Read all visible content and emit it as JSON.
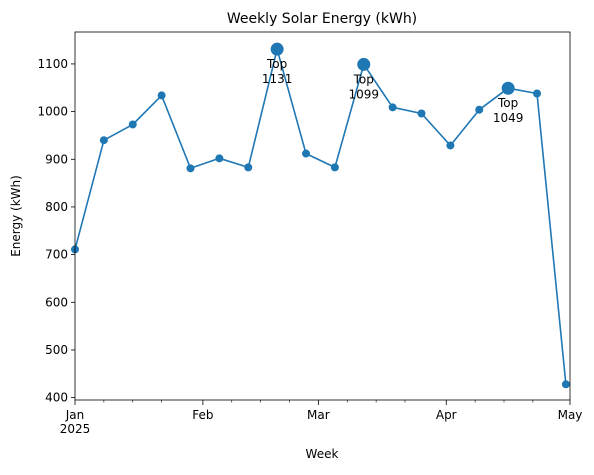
{
  "chart_data": {
    "type": "line",
    "title": "Weekly Solar Energy (kWh)",
    "xlabel": "Week",
    "ylabel": "Energy (kWh)",
    "x_start": "2025-01-01",
    "x_end": "2025-05-01",
    "ylim": [
      395,
      1167
    ],
    "yticks": [
      400,
      500,
      600,
      700,
      800,
      900,
      1000,
      1100
    ],
    "x_major_ticks": [
      {
        "date": "2025-01-01",
        "label": "Jan",
        "sublabel": "2025"
      },
      {
        "date": "2025-02-01",
        "label": "Feb"
      },
      {
        "date": "2025-03-01",
        "label": "Mar"
      },
      {
        "date": "2025-04-01",
        "label": "Apr"
      },
      {
        "date": "2025-05-01",
        "label": "May"
      }
    ],
    "x_minor_ticks": [
      "2025-01-08",
      "2025-01-15",
      "2025-01-22",
      "2025-02-08",
      "2025-02-15",
      "2025-02-22",
      "2025-03-08",
      "2025-03-15",
      "2025-03-22",
      "2025-04-08",
      "2025-04-15",
      "2025-04-22"
    ],
    "grid": false,
    "color": "#1f77b4",
    "series": [
      {
        "dates": [
          "2025-01-01",
          "2025-01-08",
          "2025-01-15",
          "2025-01-22",
          "2025-01-29",
          "2025-02-05",
          "2025-02-12",
          "2025-02-19",
          "2025-02-26",
          "2025-03-05",
          "2025-03-12",
          "2025-03-19",
          "2025-03-26",
          "2025-04-02",
          "2025-04-09",
          "2025-04-16",
          "2025-04-23",
          "2025-04-30"
        ],
        "values": [
          711,
          940,
          973,
          1034,
          881,
          902,
          883,
          1131,
          912,
          883,
          1099,
          1009,
          996,
          929,
          1004,
          1049,
          1038,
          428
        ]
      }
    ],
    "annotations": [
      {
        "date": "2025-02-19",
        "value": 1131,
        "line1": "Top",
        "line2": "1131"
      },
      {
        "date": "2025-03-12",
        "value": 1099,
        "line1": "Top",
        "line2": "1099"
      },
      {
        "date": "2025-04-16",
        "value": 1049,
        "line1": "Top",
        "line2": "1049"
      }
    ]
  }
}
